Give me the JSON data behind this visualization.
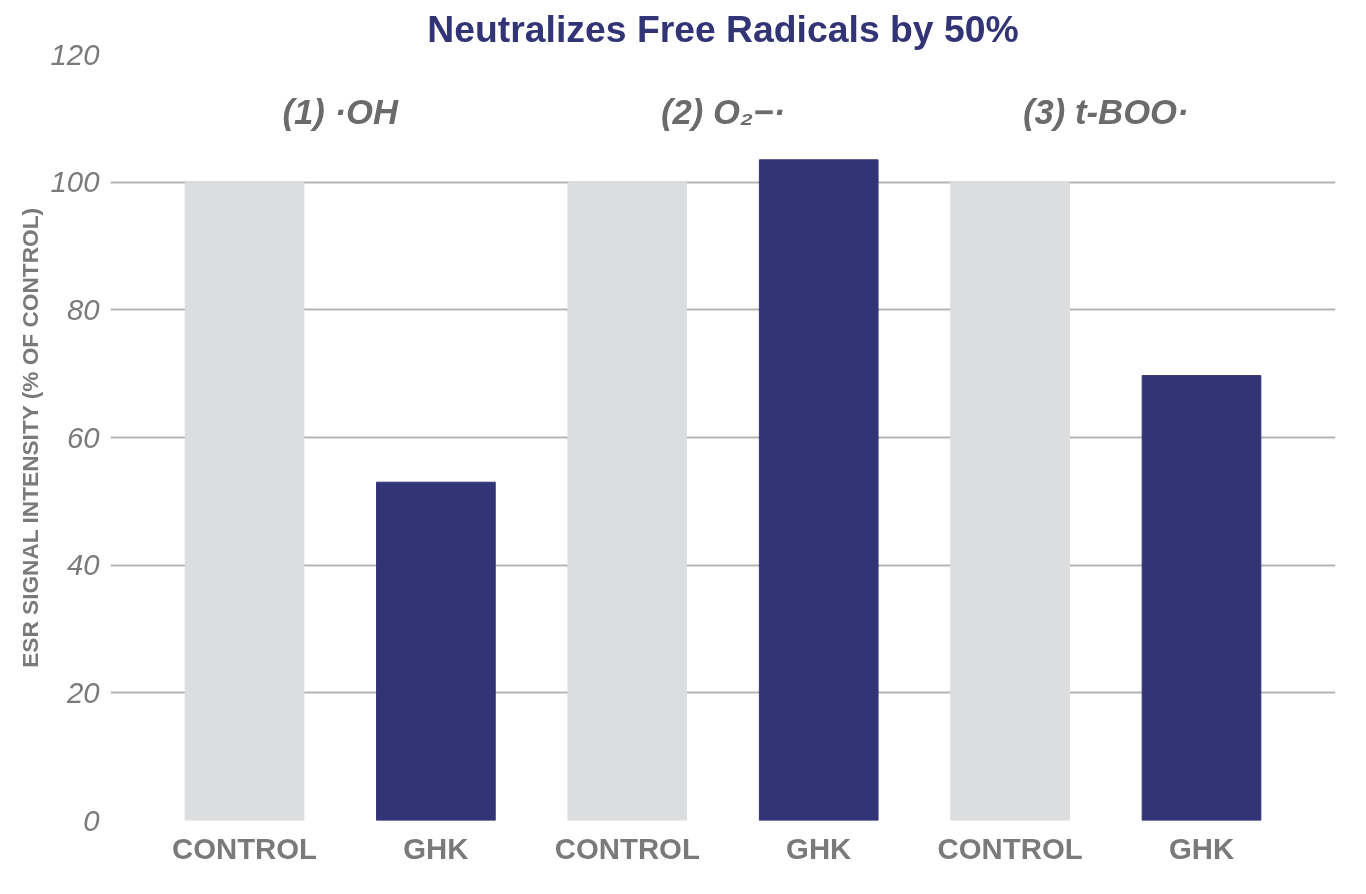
{
  "chart_data": {
    "type": "bar",
    "ylabel": "ESR SIGNAL INTENSITY (% OF CONTROL)",
    "categories": [
      "CONTROL",
      "GHK",
      "CONTROL",
      "GHK",
      "CONTROL",
      "GHK"
    ],
    "values": [
      100,
      53,
      100,
      103.5,
      100,
      69.7
    ],
    "colors": [
      "#dcdddf",
      "#333476",
      "#dcdddf",
      "#333476",
      "#dcdddf",
      "#333476"
    ],
    "ylim": [
      0,
      120
    ],
    "yticks": [
      0,
      20,
      40,
      60,
      80,
      100,
      120
    ],
    "grid": "y",
    "annotations": [
      "(1) ·OH",
      "(2) O₂−·",
      "(3) t-BOO·",
      "Neutralizes Free Radicals by 50%"
    ]
  }
}
